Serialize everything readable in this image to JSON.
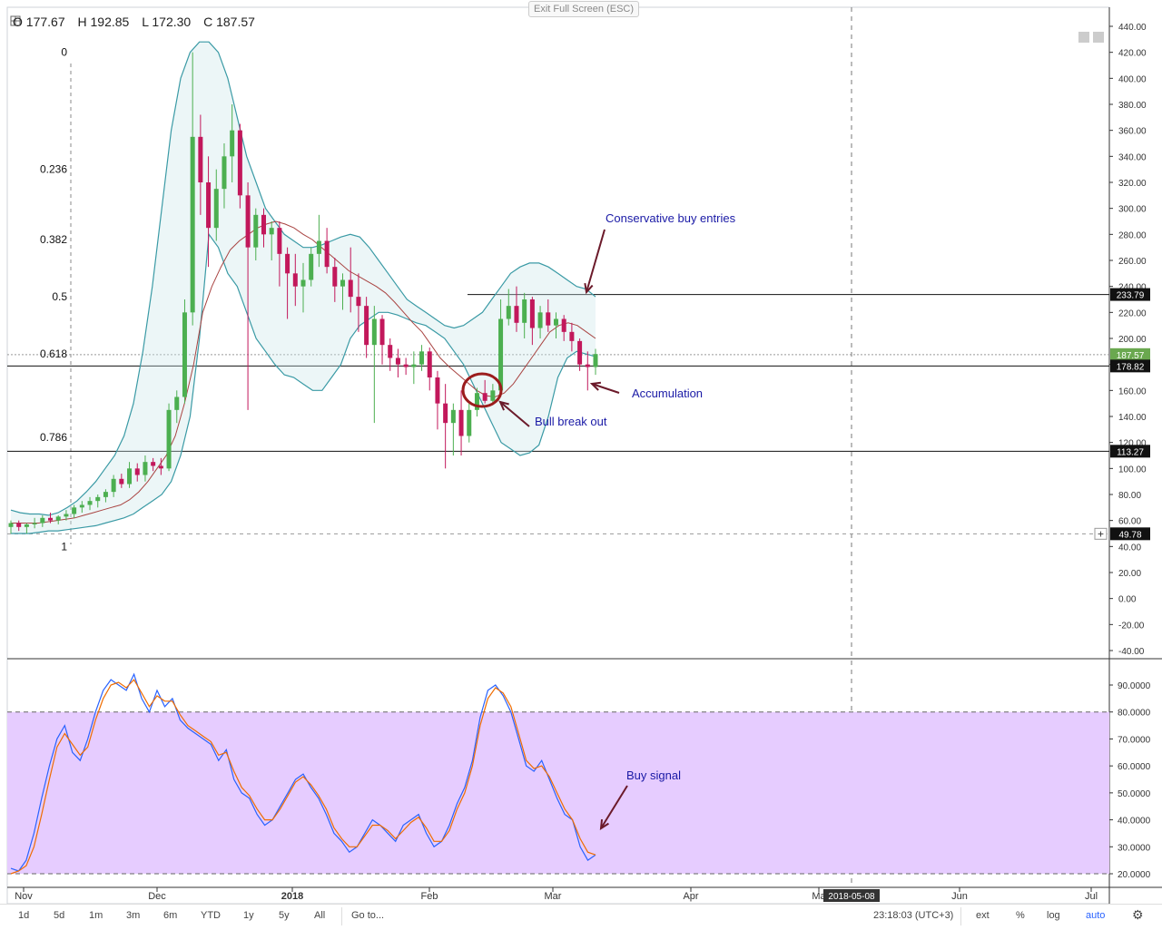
{
  "ohlc": {
    "open": "O 177.67",
    "high": "H 192.85",
    "low": "L 172.30",
    "close": "C 187.57"
  },
  "exit_label": "Exit Full Screen (ESC)",
  "chart_data": [
    {
      "type": "candlestick",
      "title": "",
      "y_ticks": [
        "440.00",
        "420.00",
        "400.00",
        "380.00",
        "360.00",
        "340.00",
        "320.00",
        "300.00",
        "280.00",
        "260.00",
        "240.00",
        "220.00",
        "200.00",
        "180.00",
        "160.00",
        "140.00",
        "120.00",
        "100.00",
        "80.00",
        "60.00",
        "40.00",
        "20.00",
        "0.00",
        "-20.00",
        "-40.00"
      ],
      "ylim": [
        -40,
        440
      ],
      "x_ticks": [
        "Nov",
        "Dec",
        "2018",
        "Feb",
        "Mar",
        "Apr",
        "Ma",
        "Jun",
        "Jul"
      ],
      "price_badges": [
        {
          "label": "233.79",
          "value": 233.79,
          "style": "dark"
        },
        {
          "label": "187.57",
          "value": 187.57,
          "style": "green"
        },
        {
          "label": "178.82",
          "value": 178.82,
          "style": "dark"
        },
        {
          "label": "113.27",
          "value": 113.27,
          "style": "dark"
        },
        {
          "label": "49.78",
          "value": 49.78,
          "style": "dark"
        }
      ],
      "horizontal_lines": [
        233.79,
        178.82,
        113.27
      ],
      "fibonacci_levels": [
        {
          "label": "0",
          "value": 420
        },
        {
          "label": "0.236",
          "value": 330
        },
        {
          "label": "0.382",
          "value": 276
        },
        {
          "label": "0.5",
          "value": 232
        },
        {
          "label": "0.618",
          "value": 188
        },
        {
          "label": "0.786",
          "value": 124
        },
        {
          "label": "1",
          "value": 40
        }
      ],
      "candles": [
        {
          "o": 55,
          "h": 60,
          "l": 50,
          "c": 58
        },
        {
          "o": 58,
          "h": 60,
          "l": 52,
          "c": 55
        },
        {
          "o": 55,
          "h": 58,
          "l": 50,
          "c": 57
        },
        {
          "o": 57,
          "h": 62,
          "l": 54,
          "c": 58
        },
        {
          "o": 58,
          "h": 64,
          "l": 55,
          "c": 62
        },
        {
          "o": 62,
          "h": 66,
          "l": 58,
          "c": 60
        },
        {
          "o": 60,
          "h": 64,
          "l": 57,
          "c": 63
        },
        {
          "o": 63,
          "h": 68,
          "l": 60,
          "c": 65
        },
        {
          "o": 65,
          "h": 72,
          "l": 62,
          "c": 70
        },
        {
          "o": 70,
          "h": 75,
          "l": 66,
          "c": 72
        },
        {
          "o": 72,
          "h": 78,
          "l": 68,
          "c": 75
        },
        {
          "o": 75,
          "h": 80,
          "l": 70,
          "c": 78
        },
        {
          "o": 78,
          "h": 84,
          "l": 74,
          "c": 82
        },
        {
          "o": 82,
          "h": 95,
          "l": 78,
          "c": 92
        },
        {
          "o": 92,
          "h": 96,
          "l": 85,
          "c": 88
        },
        {
          "o": 88,
          "h": 105,
          "l": 85,
          "c": 100
        },
        {
          "o": 100,
          "h": 104,
          "l": 90,
          "c": 95
        },
        {
          "o": 95,
          "h": 110,
          "l": 90,
          "c": 105
        },
        {
          "o": 105,
          "h": 108,
          "l": 98,
          "c": 102
        },
        {
          "o": 102,
          "h": 108,
          "l": 95,
          "c": 100
        },
        {
          "o": 100,
          "h": 150,
          "l": 98,
          "c": 145
        },
        {
          "o": 145,
          "h": 160,
          "l": 135,
          "c": 155
        },
        {
          "o": 155,
          "h": 230,
          "l": 150,
          "c": 220
        },
        {
          "o": 220,
          "h": 420,
          "l": 210,
          "c": 355
        },
        {
          "o": 355,
          "h": 372,
          "l": 295,
          "c": 320
        },
        {
          "o": 320,
          "h": 340,
          "l": 255,
          "c": 285
        },
        {
          "o": 285,
          "h": 330,
          "l": 275,
          "c": 315
        },
        {
          "o": 315,
          "h": 350,
          "l": 300,
          "c": 340
        },
        {
          "o": 340,
          "h": 380,
          "l": 320,
          "c": 360
        },
        {
          "o": 360,
          "h": 365,
          "l": 300,
          "c": 310
        },
        {
          "o": 310,
          "h": 320,
          "l": 145,
          "c": 270
        },
        {
          "o": 270,
          "h": 300,
          "l": 260,
          "c": 295
        },
        {
          "o": 295,
          "h": 300,
          "l": 270,
          "c": 280
        },
        {
          "o": 280,
          "h": 290,
          "l": 260,
          "c": 285
        },
        {
          "o": 285,
          "h": 290,
          "l": 240,
          "c": 265
        },
        {
          "o": 265,
          "h": 270,
          "l": 215,
          "c": 250
        },
        {
          "o": 250,
          "h": 265,
          "l": 225,
          "c": 240
        },
        {
          "o": 240,
          "h": 258,
          "l": 220,
          "c": 245
        },
        {
          "o": 245,
          "h": 270,
          "l": 240,
          "c": 265
        },
        {
          "o": 265,
          "h": 295,
          "l": 255,
          "c": 275
        },
        {
          "o": 275,
          "h": 285,
          "l": 250,
          "c": 255
        },
        {
          "o": 255,
          "h": 262,
          "l": 228,
          "c": 240
        },
        {
          "o": 240,
          "h": 250,
          "l": 222,
          "c": 245
        },
        {
          "o": 245,
          "h": 270,
          "l": 220,
          "c": 232
        },
        {
          "o": 232,
          "h": 250,
          "l": 205,
          "c": 225
        },
        {
          "o": 225,
          "h": 232,
          "l": 185,
          "c": 195
        },
        {
          "o": 195,
          "h": 225,
          "l": 135,
          "c": 215
        },
        {
          "o": 215,
          "h": 218,
          "l": 180,
          "c": 195
        },
        {
          "o": 195,
          "h": 200,
          "l": 175,
          "c": 185
        },
        {
          "o": 185,
          "h": 192,
          "l": 170,
          "c": 180
        },
        {
          "o": 180,
          "h": 185,
          "l": 172,
          "c": 178
        },
        {
          "o": 178,
          "h": 190,
          "l": 165,
          "c": 180
        },
        {
          "o": 180,
          "h": 195,
          "l": 175,
          "c": 190
        },
        {
          "o": 190,
          "h": 193,
          "l": 160,
          "c": 170
        },
        {
          "o": 170,
          "h": 175,
          "l": 130,
          "c": 150
        },
        {
          "o": 150,
          "h": 165,
          "l": 100,
          "c": 135
        },
        {
          "o": 135,
          "h": 150,
          "l": 110,
          "c": 145
        },
        {
          "o": 145,
          "h": 160,
          "l": 110,
          "c": 125
        },
        {
          "o": 125,
          "h": 150,
          "l": 120,
          "c": 145
        },
        {
          "o": 145,
          "h": 162,
          "l": 140,
          "c": 158
        },
        {
          "o": 158,
          "h": 168,
          "l": 150,
          "c": 152
        },
        {
          "o": 152,
          "h": 165,
          "l": 150,
          "c": 160
        },
        {
          "o": 160,
          "h": 230,
          "l": 155,
          "c": 215
        },
        {
          "o": 215,
          "h": 238,
          "l": 210,
          "c": 225
        },
        {
          "o": 225,
          "h": 240,
          "l": 205,
          "c": 212
        },
        {
          "o": 212,
          "h": 235,
          "l": 200,
          "c": 230
        },
        {
          "o": 230,
          "h": 232,
          "l": 195,
          "c": 208
        },
        {
          "o": 208,
          "h": 225,
          "l": 200,
          "c": 220
        },
        {
          "o": 220,
          "h": 230,
          "l": 205,
          "c": 210
        },
        {
          "o": 210,
          "h": 220,
          "l": 200,
          "c": 215
        },
        {
          "o": 215,
          "h": 218,
          "l": 198,
          "c": 205
        },
        {
          "o": 205,
          "h": 212,
          "l": 190,
          "c": 198
        },
        {
          "o": 198,
          "h": 200,
          "l": 175,
          "c": 180
        },
        {
          "o": 180,
          "h": 190,
          "l": 160,
          "c": 178
        },
        {
          "o": 178,
          "h": 192,
          "l": 172,
          "c": 188
        }
      ],
      "bollinger_upper": [
        68,
        66,
        65,
        65,
        64,
        66,
        70,
        75,
        82,
        90,
        100,
        110,
        125,
        150,
        190,
        240,
        300,
        360,
        400,
        420,
        428,
        428,
        420,
        400,
        370,
        340,
        320,
        300,
        290,
        280,
        275,
        270,
        270,
        272,
        275,
        278,
        280,
        278,
        270,
        260,
        250,
        240,
        230,
        225,
        220,
        215,
        210,
        208,
        210,
        215,
        220,
        230,
        240,
        250,
        255,
        258,
        258,
        255,
        250,
        245,
        240,
        238,
        232
      ],
      "bollinger_lower": [
        50,
        50,
        50,
        51,
        52,
        52,
        53,
        54,
        55,
        56,
        58,
        60,
        62,
        65,
        70,
        75,
        80,
        90,
        110,
        140,
        200,
        280,
        270,
        250,
        240,
        220,
        200,
        190,
        180,
        172,
        170,
        165,
        160,
        160,
        170,
        180,
        200,
        210,
        215,
        220,
        220,
        218,
        215,
        212,
        210,
        205,
        200,
        190,
        180,
        165,
        150,
        135,
        120,
        115,
        110,
        112,
        118,
        140,
        170,
        185,
        190,
        188,
        186
      ],
      "moving_average": [
        58,
        58,
        58,
        58,
        59,
        60,
        61,
        62,
        64,
        66,
        68,
        70,
        72,
        76,
        82,
        90,
        100,
        110,
        125,
        150,
        180,
        220,
        240,
        255,
        268,
        275,
        280,
        285,
        288,
        290,
        288,
        285,
        280,
        276,
        270,
        264,
        258,
        252,
        248,
        244,
        240,
        235,
        228,
        220,
        212,
        205,
        195,
        185,
        178,
        172,
        166,
        160,
        156,
        155,
        158,
        165,
        175,
        185,
        195,
        205,
        210,
        212,
        210,
        205,
        200
      ],
      "annotations": [
        {
          "text": "Conservative buy entries"
        },
        {
          "text": "Accumulation"
        },
        {
          "text": "Bull break out"
        }
      ]
    },
    {
      "type": "line",
      "title": "",
      "y_ticks": [
        "90.0000",
        "80.0000",
        "70.0000",
        "60.0000",
        "50.0000",
        "40.0000",
        "30.0000",
        "20.0000"
      ],
      "ylim": [
        17,
        100
      ],
      "overbought": 80,
      "oversold": 20,
      "series": [
        {
          "color": "#2962ff",
          "values": [
            22,
            21,
            25,
            35,
            48,
            60,
            70,
            75,
            65,
            62,
            70,
            80,
            88,
            92,
            90,
            88,
            94,
            85,
            80,
            88,
            82,
            85,
            77,
            74,
            72,
            70,
            68,
            62,
            66,
            55,
            50,
            48,
            42,
            38,
            40,
            45,
            50,
            55,
            57,
            52,
            48,
            42,
            35,
            32,
            28,
            30,
            35,
            40,
            38,
            35,
            32,
            38,
            40,
            42,
            35,
            30,
            32,
            38,
            46,
            52,
            62,
            78,
            88,
            90,
            86,
            80,
            70,
            60,
            58,
            62,
            55,
            48,
            42,
            40,
            30,
            25,
            27
          ]
        },
        {
          "color": "#ef6c00",
          "values": [
            20,
            21,
            23,
            30,
            42,
            55,
            67,
            72,
            68,
            64,
            67,
            77,
            85,
            90,
            91,
            89,
            92,
            87,
            82,
            86,
            84,
            84,
            79,
            75,
            73,
            71,
            69,
            64,
            65,
            58,
            52,
            49,
            44,
            40,
            40,
            44,
            49,
            54,
            56,
            53,
            49,
            44,
            37,
            33,
            30,
            30,
            34,
            38,
            38,
            36,
            33,
            36,
            39,
            41,
            37,
            32,
            32,
            36,
            44,
            50,
            60,
            75,
            85,
            89,
            87,
            82,
            72,
            62,
            59,
            60,
            56,
            50,
            44,
            40,
            33,
            28,
            27
          ]
        }
      ],
      "annotations": [
        {
          "text": "Buy signal"
        }
      ]
    }
  ],
  "x_axis_date_badge": "2018-05-08",
  "toolbar": {
    "ranges": [
      "1d",
      "5d",
      "1m",
      "3m",
      "6m",
      "YTD",
      "1y",
      "5y",
      "All"
    ],
    "goto": "Go to...",
    "time": "23:18:03 (UTC+3)",
    "ext": "ext",
    "percent": "%",
    "log": "log",
    "auto": "auto"
  },
  "colors": {
    "candle_up": "#4caf50",
    "candle_down": "#c2185b",
    "bollinger": "#3a9aa5",
    "bollinger_fill": "rgba(200,230,232,0.35)",
    "ma": "#a94442",
    "annotation": "#1a1aa6",
    "arrow": "#6b1a2a",
    "stoch_zone": "#e6ccff"
  }
}
